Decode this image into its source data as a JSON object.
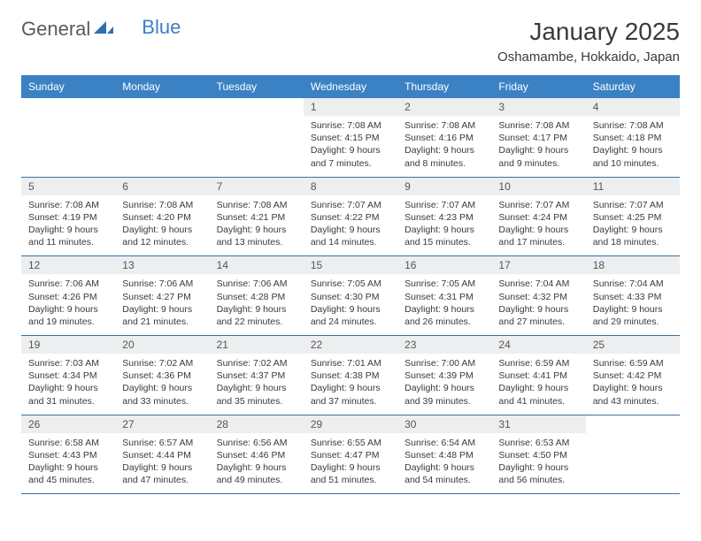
{
  "logo": {
    "text1": "General",
    "text2": "Blue"
  },
  "title": "January 2025",
  "location": "Oshamambe, Hokkaido, Japan",
  "colors": {
    "header_bg": "#3b82c4",
    "header_text": "#ffffff",
    "daynum_bg": "#eceef0",
    "row_border": "#3b6fa4",
    "logo_blue": "#3b7fc4",
    "text": "#3a3a3a"
  },
  "weekdays": [
    "Sunday",
    "Monday",
    "Tuesday",
    "Wednesday",
    "Thursday",
    "Friday",
    "Saturday"
  ],
  "weeks": [
    [
      {
        "blank": true
      },
      {
        "blank": true
      },
      {
        "blank": true
      },
      {
        "n": "1",
        "sr": "7:08 AM",
        "ss": "4:15 PM",
        "dl": "9 hours and 7 minutes."
      },
      {
        "n": "2",
        "sr": "7:08 AM",
        "ss": "4:16 PM",
        "dl": "9 hours and 8 minutes."
      },
      {
        "n": "3",
        "sr": "7:08 AM",
        "ss": "4:17 PM",
        "dl": "9 hours and 9 minutes."
      },
      {
        "n": "4",
        "sr": "7:08 AM",
        "ss": "4:18 PM",
        "dl": "9 hours and 10 minutes."
      }
    ],
    [
      {
        "n": "5",
        "sr": "7:08 AM",
        "ss": "4:19 PM",
        "dl": "9 hours and 11 minutes."
      },
      {
        "n": "6",
        "sr": "7:08 AM",
        "ss": "4:20 PM",
        "dl": "9 hours and 12 minutes."
      },
      {
        "n": "7",
        "sr": "7:08 AM",
        "ss": "4:21 PM",
        "dl": "9 hours and 13 minutes."
      },
      {
        "n": "8",
        "sr": "7:07 AM",
        "ss": "4:22 PM",
        "dl": "9 hours and 14 minutes."
      },
      {
        "n": "9",
        "sr": "7:07 AM",
        "ss": "4:23 PM",
        "dl": "9 hours and 15 minutes."
      },
      {
        "n": "10",
        "sr": "7:07 AM",
        "ss": "4:24 PM",
        "dl": "9 hours and 17 minutes."
      },
      {
        "n": "11",
        "sr": "7:07 AM",
        "ss": "4:25 PM",
        "dl": "9 hours and 18 minutes."
      }
    ],
    [
      {
        "n": "12",
        "sr": "7:06 AM",
        "ss": "4:26 PM",
        "dl": "9 hours and 19 minutes."
      },
      {
        "n": "13",
        "sr": "7:06 AM",
        "ss": "4:27 PM",
        "dl": "9 hours and 21 minutes."
      },
      {
        "n": "14",
        "sr": "7:06 AM",
        "ss": "4:28 PM",
        "dl": "9 hours and 22 minutes."
      },
      {
        "n": "15",
        "sr": "7:05 AM",
        "ss": "4:30 PM",
        "dl": "9 hours and 24 minutes."
      },
      {
        "n": "16",
        "sr": "7:05 AM",
        "ss": "4:31 PM",
        "dl": "9 hours and 26 minutes."
      },
      {
        "n": "17",
        "sr": "7:04 AM",
        "ss": "4:32 PM",
        "dl": "9 hours and 27 minutes."
      },
      {
        "n": "18",
        "sr": "7:04 AM",
        "ss": "4:33 PM",
        "dl": "9 hours and 29 minutes."
      }
    ],
    [
      {
        "n": "19",
        "sr": "7:03 AM",
        "ss": "4:34 PM",
        "dl": "9 hours and 31 minutes."
      },
      {
        "n": "20",
        "sr": "7:02 AM",
        "ss": "4:36 PM",
        "dl": "9 hours and 33 minutes."
      },
      {
        "n": "21",
        "sr": "7:02 AM",
        "ss": "4:37 PM",
        "dl": "9 hours and 35 minutes."
      },
      {
        "n": "22",
        "sr": "7:01 AM",
        "ss": "4:38 PM",
        "dl": "9 hours and 37 minutes."
      },
      {
        "n": "23",
        "sr": "7:00 AM",
        "ss": "4:39 PM",
        "dl": "9 hours and 39 minutes."
      },
      {
        "n": "24",
        "sr": "6:59 AM",
        "ss": "4:41 PM",
        "dl": "9 hours and 41 minutes."
      },
      {
        "n": "25",
        "sr": "6:59 AM",
        "ss": "4:42 PM",
        "dl": "9 hours and 43 minutes."
      }
    ],
    [
      {
        "n": "26",
        "sr": "6:58 AM",
        "ss": "4:43 PM",
        "dl": "9 hours and 45 minutes."
      },
      {
        "n": "27",
        "sr": "6:57 AM",
        "ss": "4:44 PM",
        "dl": "9 hours and 47 minutes."
      },
      {
        "n": "28",
        "sr": "6:56 AM",
        "ss": "4:46 PM",
        "dl": "9 hours and 49 minutes."
      },
      {
        "n": "29",
        "sr": "6:55 AM",
        "ss": "4:47 PM",
        "dl": "9 hours and 51 minutes."
      },
      {
        "n": "30",
        "sr": "6:54 AM",
        "ss": "4:48 PM",
        "dl": "9 hours and 54 minutes."
      },
      {
        "n": "31",
        "sr": "6:53 AM",
        "ss": "4:50 PM",
        "dl": "9 hours and 56 minutes."
      },
      {
        "blank": true
      }
    ]
  ],
  "labels": {
    "sunrise": "Sunrise:",
    "sunset": "Sunset:",
    "daylight": "Daylight:"
  }
}
